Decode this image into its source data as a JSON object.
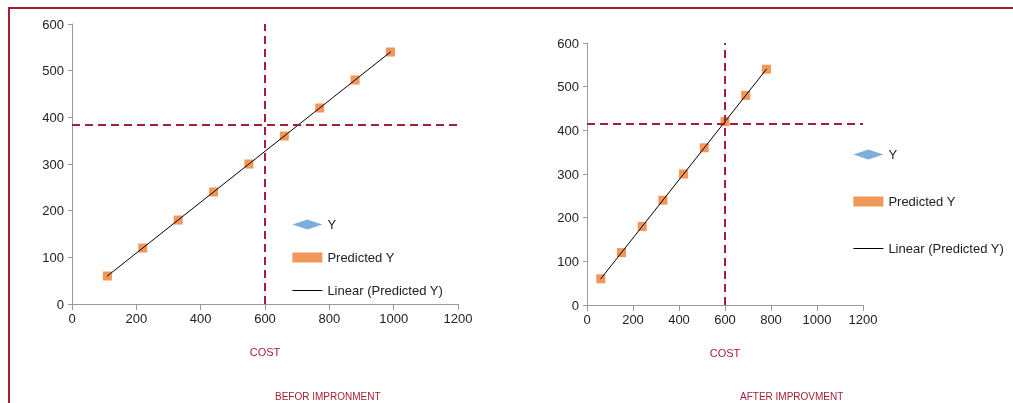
{
  "chart_data": [
    {
      "type": "scatter",
      "xlabel": "COST",
      "annotations": [
        "BEFOR IMPRONMENT"
      ],
      "x": [
        110,
        220,
        330,
        440,
        550,
        660,
        770,
        880,
        990
      ],
      "series": [
        {
          "name": "Y",
          "color": "#5b9bd5",
          "marker": "diamond",
          "values": [
            null,
            null,
            null,
            null,
            null,
            null,
            null,
            null,
            null
          ]
        },
        {
          "name": "Predicted Y",
          "color": "#ed7d31",
          "marker": "square",
          "values": [
            60,
            120,
            180,
            240,
            300,
            360,
            420,
            480,
            540
          ]
        },
        {
          "name": "Linear (Predicted Y)",
          "type": "line",
          "color": "#000000",
          "marker": "none",
          "line_style": "solid",
          "x": [
            110,
            990
          ],
          "values": [
            60,
            540
          ]
        }
      ],
      "xlim": [
        0,
        1200
      ],
      "xticks": [
        0,
        200,
        400,
        600,
        800,
        1000,
        1200
      ],
      "ylim": [
        0,
        600
      ],
      "yticks": [
        0,
        100,
        200,
        300,
        400,
        500,
        600
      ],
      "ref_lines": [
        {
          "axis": "y",
          "value": 385,
          "color": "#a31f34",
          "line_style": "dashed"
        },
        {
          "axis": "x",
          "value": 600,
          "color": "#a31f34",
          "line_style": "dashed"
        }
      ],
      "grid": false,
      "legend": "bottom right"
    },
    {
      "type": "scatter",
      "xlabel": "COST",
      "annotations": [
        "AFTER IMPROVMENT"
      ],
      "x": [
        60,
        150,
        240,
        330,
        420,
        510,
        600,
        690,
        780
      ],
      "series": [
        {
          "name": "Y",
          "color": "#5b9bd5",
          "marker": "diamond",
          "values": [
            null,
            null,
            null,
            null,
            null,
            null,
            null,
            null,
            null
          ]
        },
        {
          "name": "Predicted Y",
          "color": "#ed7d31",
          "marker": "square",
          "values": [
            60,
            120,
            180,
            240,
            300,
            360,
            420,
            480,
            540
          ]
        },
        {
          "name": "Linear (Predicted Y)",
          "type": "line",
          "color": "#000000",
          "marker": "none",
          "line_style": "solid",
          "x": [
            60,
            780
          ],
          "values": [
            60,
            540
          ]
        }
      ],
      "xlim": [
        0,
        1200
      ],
      "xticks": [
        0,
        200,
        400,
        600,
        800,
        1000,
        1200
      ],
      "ylim": [
        0,
        600
      ],
      "yticks": [
        0,
        100,
        200,
        300,
        400,
        500,
        600
      ],
      "ref_lines": [
        {
          "axis": "y",
          "value": 415,
          "color": "#a31f34",
          "line_style": "dashed"
        },
        {
          "axis": "x",
          "value": 600,
          "color": "#a31f34",
          "line_style": "dashed"
        }
      ],
      "grid": false,
      "legend": "right"
    }
  ]
}
